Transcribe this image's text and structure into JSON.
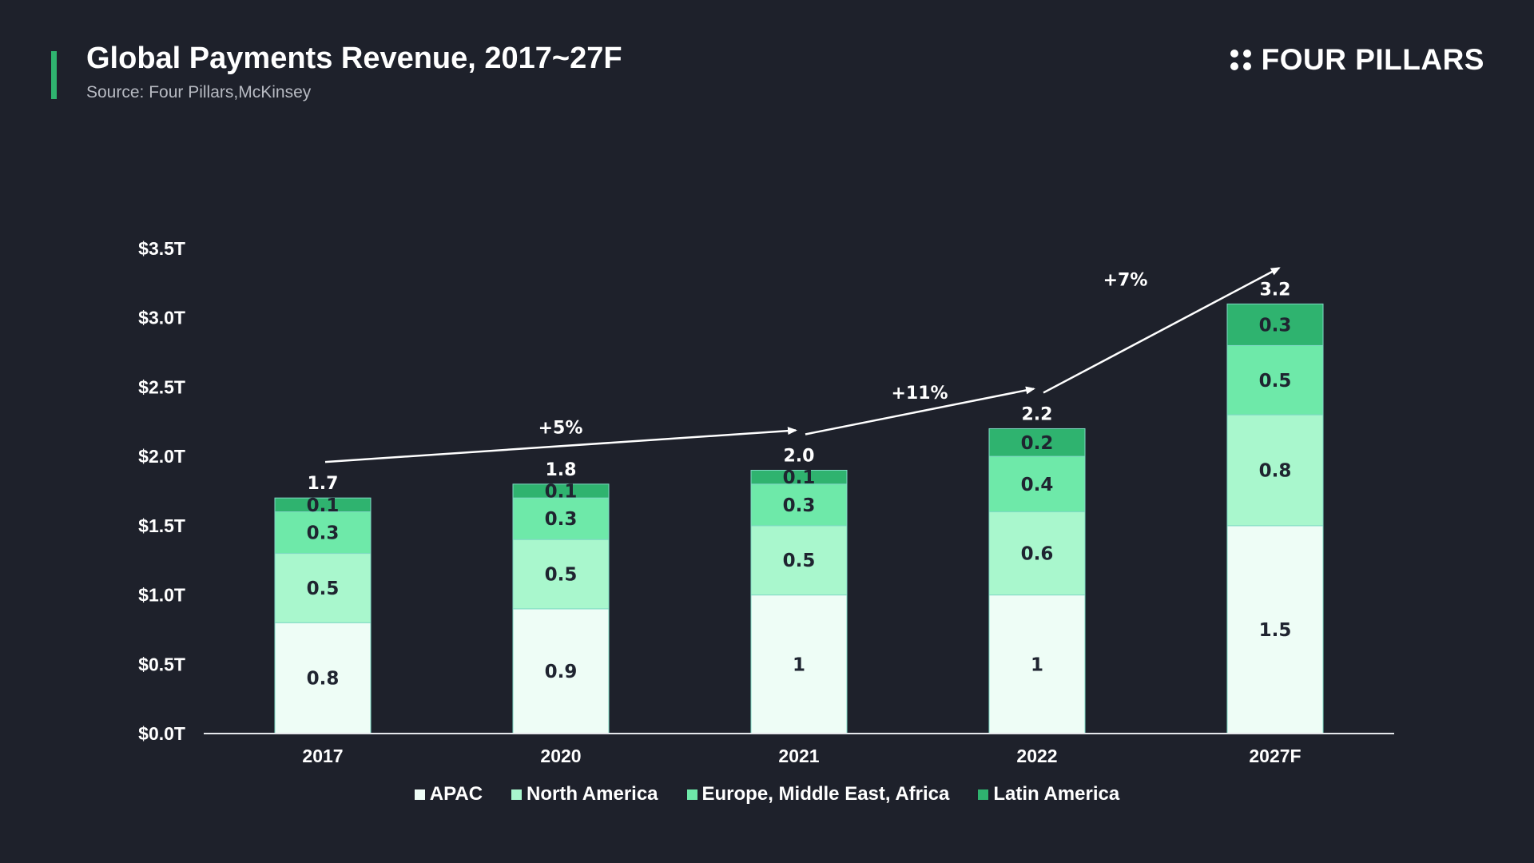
{
  "header": {
    "title": "Global Payments Revenue, 2017~27F",
    "subtitle": "Source: Four Pillars,McKinsey",
    "logo_text": "FOUR PILLARS",
    "logo_icon": "four-dots-icon",
    "accent_color": "#2fb36f"
  },
  "chart_data": {
    "type": "bar",
    "stacked": true,
    "categories": [
      "2017",
      "2020",
      "2021",
      "2022",
      "2027F"
    ],
    "series": [
      {
        "name": "APAC",
        "values": [
          0.8,
          0.9,
          1,
          1,
          1.5
        ],
        "labels": [
          "0.8",
          "0.9",
          "1",
          "1",
          "1.5"
        ],
        "color": "#eefdf6"
      },
      {
        "name": "North America",
        "values": [
          0.5,
          0.5,
          0.5,
          0.6,
          0.8
        ],
        "labels": [
          "0.5",
          "0.5",
          "0.5",
          "0.6",
          "0.8"
        ],
        "color": "#a9f7cd"
      },
      {
        "name": "Europe, Middle East, Africa",
        "values": [
          0.3,
          0.3,
          0.3,
          0.4,
          0.5
        ],
        "labels": [
          "0.3",
          "0.3",
          "0.3",
          "0.4",
          "0.5"
        ],
        "color": "#6ee9a9"
      },
      {
        "name": "Latin America",
        "values": [
          0.1,
          0.1,
          0.1,
          0.2,
          0.3
        ],
        "labels": [
          "0.1",
          "0.1",
          "0.1",
          "0.2",
          "0.3"
        ],
        "color": "#2fb36f"
      }
    ],
    "totals": [
      "1.7",
      "1.8",
      "2.0",
      "2.2",
      "3.2"
    ],
    "y_ticks": [
      "$0.0T",
      "$0.5T",
      "$1.0T",
      "$1.5T",
      "$2.0T",
      "$2.5T",
      "$3.0T",
      "$3.5T"
    ],
    "ylim": [
      0,
      3.5
    ],
    "growth_annotations": [
      {
        "from": "2017",
        "to": "2021",
        "label": "+5%"
      },
      {
        "from": "2021",
        "to": "2022",
        "label": "+11%"
      },
      {
        "from": "2022",
        "to": "2027F",
        "label": "+7%"
      }
    ],
    "grid": false,
    "legend_position": "bottom-center"
  }
}
